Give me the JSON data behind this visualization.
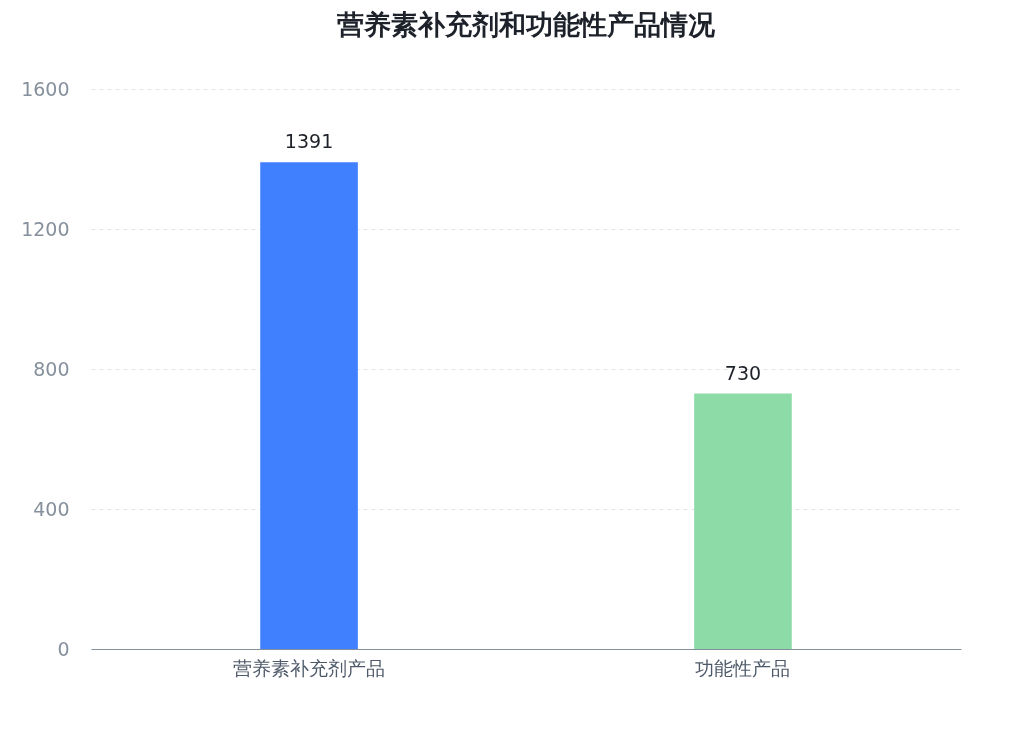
{
  "chart_data": {
    "type": "bar",
    "title": "营养素补充剂和功能性产品情况",
    "categories": [
      "营养素补充剂产品",
      "功能性产品"
    ],
    "values": [
      1391,
      730
    ],
    "colors": [
      "#4080ff",
      "#8ddca8"
    ],
    "ylim": [
      0,
      1600
    ],
    "yticks": [
      0,
      400,
      800,
      1200,
      1600
    ],
    "grid": "y",
    "data_labels": true
  }
}
